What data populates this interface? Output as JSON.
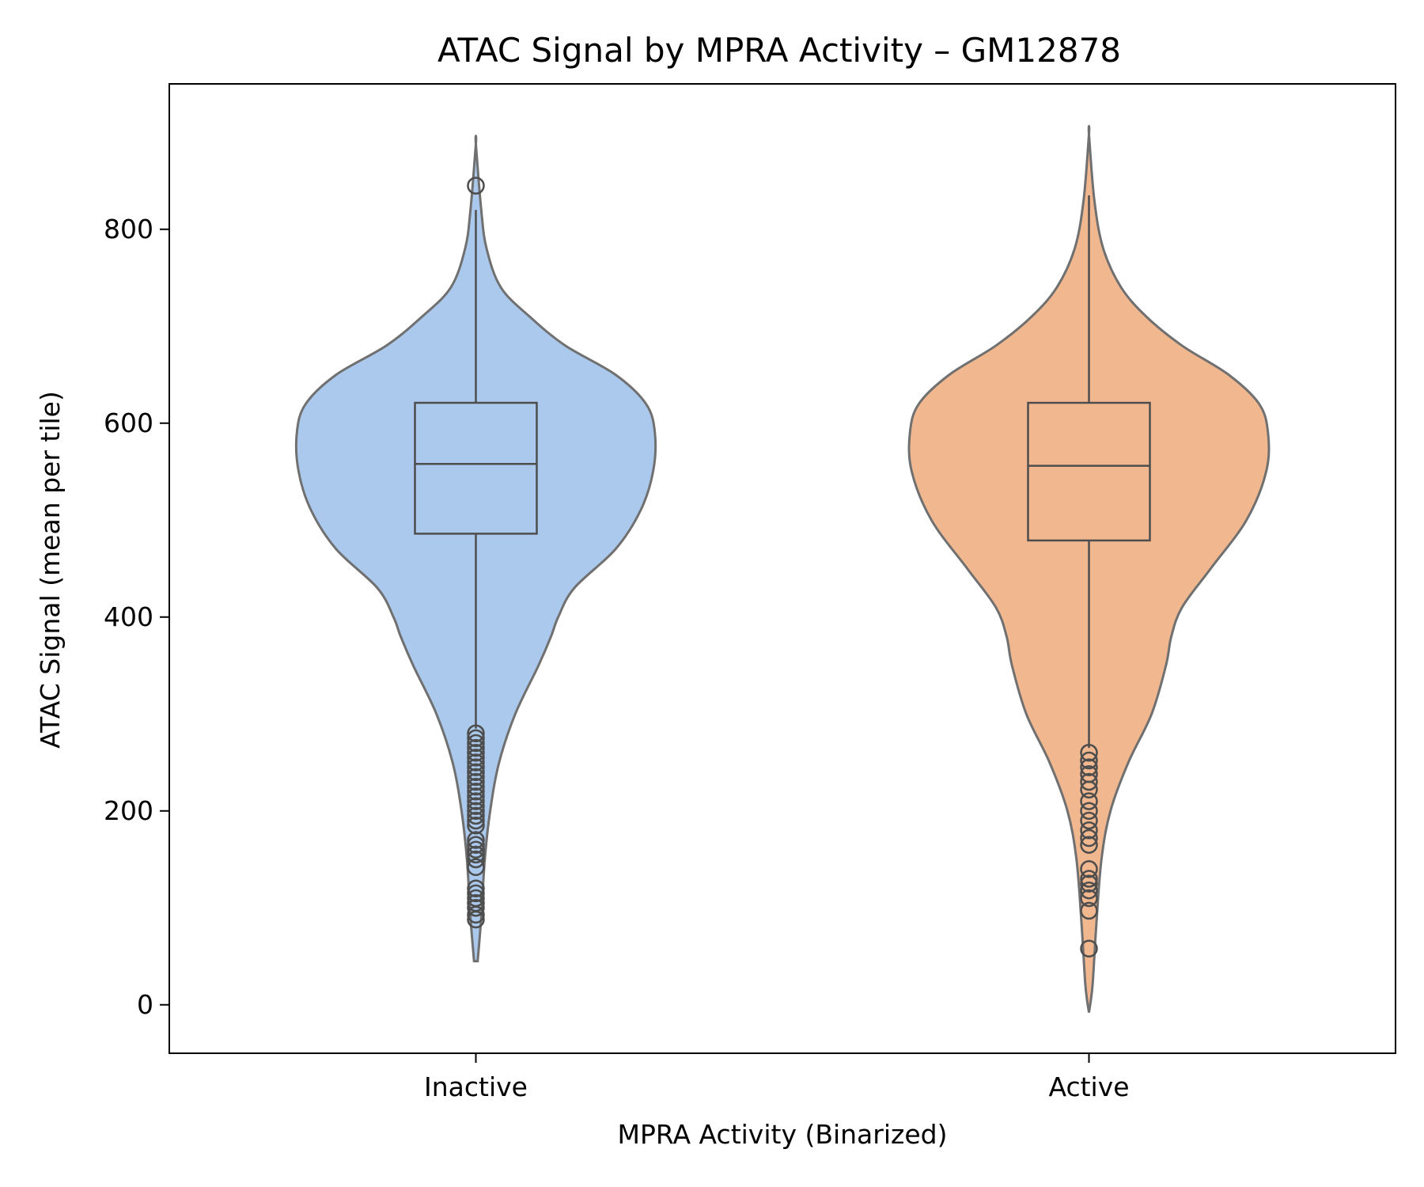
{
  "chart_data": {
    "type": "violin",
    "title": "ATAC Signal by MPRA Activity – GM12878",
    "xlabel": "MPRA Activity (Binarized)",
    "ylabel": "ATAC Signal (mean per tile)",
    "categories": [
      "Inactive",
      "Active"
    ],
    "ylim": [
      -50,
      950
    ],
    "yticks": [
      0,
      200,
      400,
      600,
      800
    ],
    "grid": false,
    "legend": "none",
    "colors": {
      "Inactive": "#abc9ec",
      "Active": "#f1b890",
      "outline": "#707070",
      "box": "#4d4d4d"
    },
    "series": [
      {
        "category": "Inactive",
        "box": {
          "q1": 486,
          "median": 558,
          "q3": 621,
          "whisker_low": 285,
          "whisker_high": 820
        },
        "outliers": [
          845,
          280,
          275,
          270,
          265,
          260,
          255,
          250,
          245,
          240,
          235,
          230,
          225,
          220,
          215,
          210,
          205,
          200,
          195,
          190,
          185,
          170,
          165,
          160,
          155,
          150,
          142,
          120,
          115,
          110,
          105,
          100,
          93,
          88
        ],
        "violin_range": [
          45,
          888
        ],
        "density_profile": [
          [
            45,
            0.01
          ],
          [
            90,
            0.03
          ],
          [
            150,
            0.05
          ],
          [
            200,
            0.08
          ],
          [
            250,
            0.13
          ],
          [
            300,
            0.22
          ],
          [
            350,
            0.35
          ],
          [
            380,
            0.42
          ],
          [
            400,
            0.46
          ],
          [
            430,
            0.55
          ],
          [
            470,
            0.78
          ],
          [
            510,
            0.92
          ],
          [
            550,
            0.99
          ],
          [
            590,
            1.0
          ],
          [
            620,
            0.95
          ],
          [
            650,
            0.78
          ],
          [
            680,
            0.5
          ],
          [
            710,
            0.3
          ],
          [
            740,
            0.14
          ],
          [
            780,
            0.06
          ],
          [
            820,
            0.03
          ],
          [
            888,
            0.0
          ]
        ]
      },
      {
        "category": "Active",
        "box": {
          "q1": 479,
          "median": 556,
          "q3": 621,
          "whisker_low": 265,
          "whisker_high": 835
        },
        "outliers": [
          260,
          252,
          245,
          238,
          230,
          222,
          210,
          200,
          190,
          180,
          172,
          165,
          140,
          130,
          125,
          118,
          110,
          97,
          58
        ],
        "violin_range": [
          -8,
          898
        ],
        "density_profile": [
          [
            -8,
            0.0
          ],
          [
            20,
            0.02
          ],
          [
            80,
            0.04
          ],
          [
            150,
            0.07
          ],
          [
            200,
            0.12
          ],
          [
            250,
            0.22
          ],
          [
            300,
            0.35
          ],
          [
            350,
            0.43
          ],
          [
            380,
            0.46
          ],
          [
            410,
            0.52
          ],
          [
            450,
            0.68
          ],
          [
            500,
            0.88
          ],
          [
            550,
            0.99
          ],
          [
            590,
            1.0
          ],
          [
            620,
            0.95
          ],
          [
            650,
            0.78
          ],
          [
            680,
            0.52
          ],
          [
            710,
            0.32
          ],
          [
            740,
            0.18
          ],
          [
            780,
            0.08
          ],
          [
            830,
            0.03
          ],
          [
            898,
            0.0
          ]
        ]
      }
    ]
  }
}
